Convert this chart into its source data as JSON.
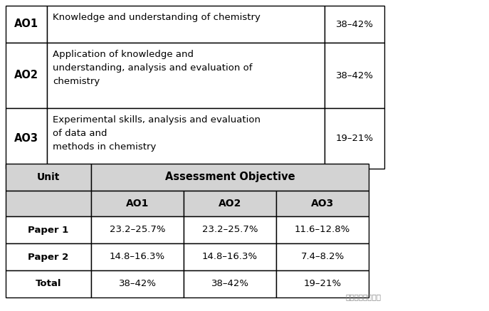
{
  "bg_color": "#ffffff",
  "table1": {
    "rows": [
      {
        "code": "AO1",
        "description": "Knowledge and understanding of chemistry",
        "percent": "38–42%"
      },
      {
        "code": "AO2",
        "description": "Application of knowledge and\nunderstanding, analysis and evaluation of\nchemistry",
        "percent": "38–42%"
      },
      {
        "code": "AO3",
        "description": "Experimental skills, analysis and evaluation\nof data and\nmethods in chemistry",
        "percent": "19–21%"
      }
    ]
  },
  "table2": {
    "rows": [
      [
        "Paper 1",
        "23.2–25.7%",
        "23.2–25.7%",
        "11.6–12.8%"
      ],
      [
        "Paper 2",
        "14.8–16.3%",
        "14.8–16.3%",
        "7.4–8.2%"
      ],
      [
        "Total",
        "38–42%",
        "38–42%",
        "19–21%"
      ]
    ],
    "header_bg": "#d3d3d3"
  },
  "border_color": "#000000",
  "text_color": "#000000",
  "watermark": "中科数理国际教育"
}
